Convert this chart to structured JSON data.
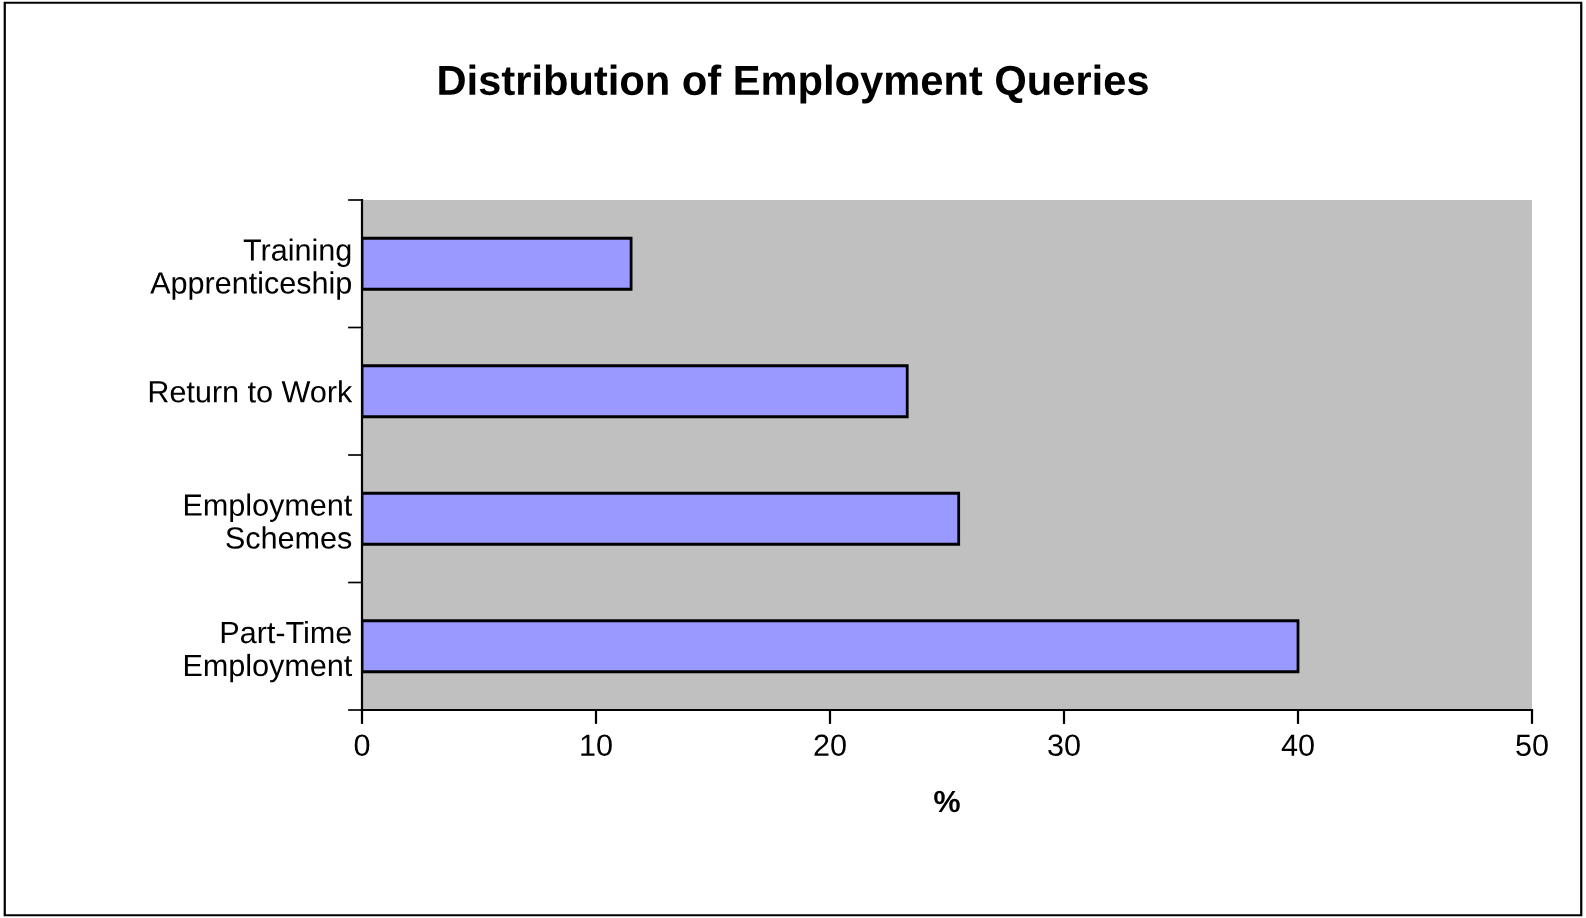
{
  "chart_data": {
    "type": "bar",
    "orientation": "horizontal",
    "title": "Distribution of Employment Queries",
    "xlabel": "%",
    "categories": [
      "Training\nApprenticeship",
      "Return to Work",
      "Employment\nSchemes",
      "Part-Time\nEmployment"
    ],
    "values": [
      11.5,
      23.3,
      25.5,
      40.0
    ],
    "color": "#9999ff",
    "xlim": [
      0,
      50
    ],
    "xticks": [
      0,
      10,
      20,
      30,
      40,
      50
    ],
    "grid": false
  }
}
